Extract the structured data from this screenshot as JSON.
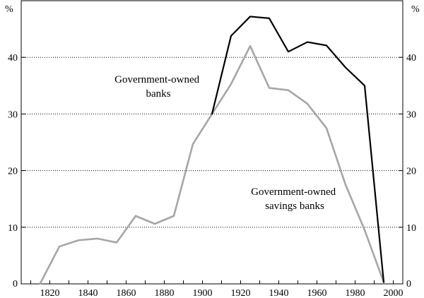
{
  "chart_data": {
    "type": "line",
    "x": [
      1810,
      1820,
      1830,
      1840,
      1850,
      1860,
      1870,
      1880,
      1890,
      1900,
      1910,
      1920,
      1930,
      1940,
      1950,
      1960,
      1970,
      1980,
      1990
    ],
    "xlim": [
      1805,
      2005
    ],
    "ylim": [
      0,
      50
    ],
    "xticks": [
      "1820",
      "1840",
      "1860",
      "1880",
      "1900",
      "1920",
      "1940",
      "1960",
      "1980",
      "2000"
    ],
    "xtick_values": [
      1820,
      1840,
      1860,
      1880,
      1900,
      1920,
      1940,
      1960,
      1980,
      2000
    ],
    "yticks": [
      "0",
      "10",
      "20",
      "30",
      "40"
    ],
    "ytick_values": [
      0,
      10,
      20,
      30,
      40
    ],
    "ylabel_left": "%",
    "ylabel_right": "%",
    "grid": "horizontal dotted at 10, 20, 30, 40",
    "series": [
      {
        "name": "Government-owned banks",
        "color": "#000000",
        "x": [
          1905,
          1915,
          1925,
          1935,
          1945,
          1955,
          1965,
          1975,
          1985,
          1995
        ],
        "values": [
          30.0,
          43.8,
          47.2,
          46.9,
          41.0,
          42.7,
          42.1,
          38.2,
          35.0,
          0.3
        ]
      },
      {
        "name": "Government-owned savings banks",
        "color": "#a6a6a6",
        "x": [
          1815,
          1825,
          1835,
          1845,
          1855,
          1865,
          1875,
          1885,
          1895,
          1905,
          1915,
          1925,
          1935,
          1945,
          1955,
          1965,
          1975,
          1985,
          1995
        ],
        "values": [
          0.1,
          6.6,
          7.7,
          8.0,
          7.3,
          12.0,
          10.6,
          12.0,
          24.7,
          30.0,
          35.3,
          42.0,
          34.6,
          34.2,
          31.8,
          27.5,
          17.5,
          9.5,
          0.3
        ]
      }
    ],
    "annotations": [
      {
        "lines": [
          "Government-owned",
          "banks"
        ]
      },
      {
        "lines": [
          "Government-owned",
          "savings banks"
        ]
      }
    ]
  }
}
